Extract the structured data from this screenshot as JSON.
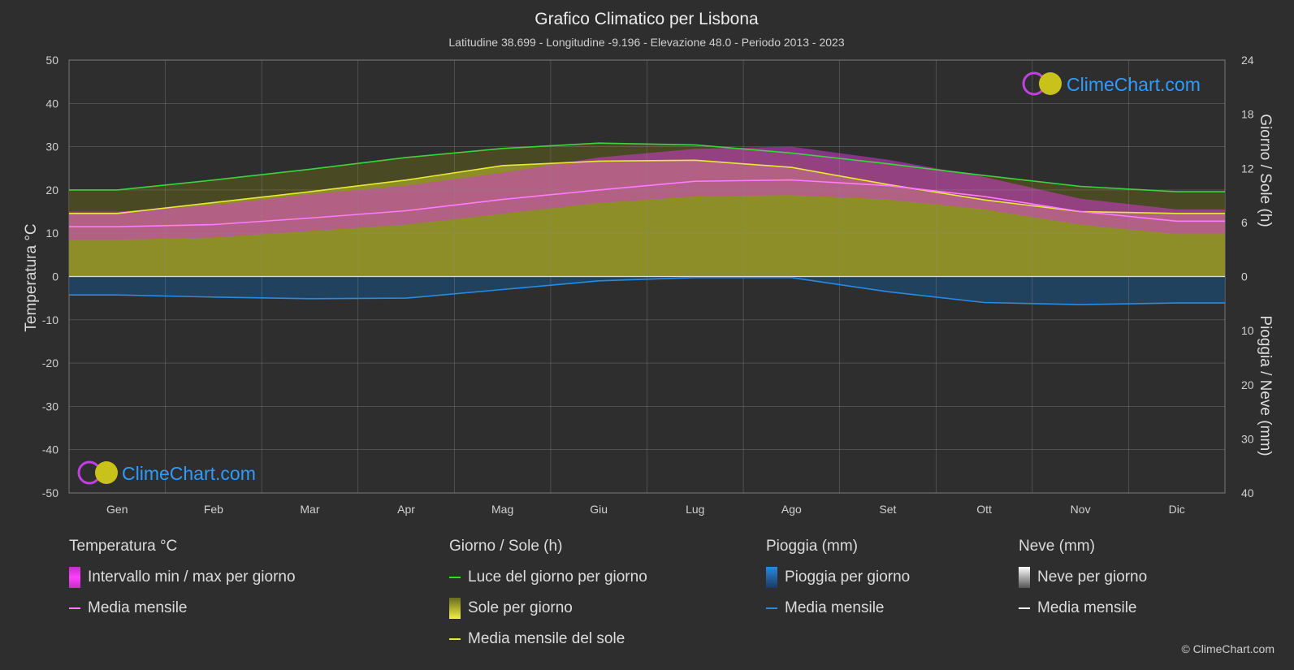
{
  "title": "Grafico Climatico per Lisbona",
  "subtitle": "Latitudine 38.699 - Longitudine -9.196 - Elevazione 48.0 - Periodo 2013 - 2023",
  "brand": "ClimeChart.com",
  "copyright": "© ClimeChart.com",
  "colors": {
    "background": "#2e2e2e",
    "daylight": "#3fd23f",
    "sun_mean": "#e8e83a",
    "sun_fill": "#9a9a2a",
    "temp_range": "#d23ad2",
    "temp_mean": "#ff7aff",
    "rain": "#1f6fb5",
    "rain_mean": "#2a8ae0",
    "snow_mean": "#ffffff",
    "brand": "#2e9bff"
  },
  "chart_data": {
    "type": "area",
    "categories": [
      "Gen",
      "Feb",
      "Mar",
      "Apr",
      "Mag",
      "Giu",
      "Lug",
      "Ago",
      "Set",
      "Ott",
      "Nov",
      "Dic"
    ],
    "y_left": {
      "label": "Temperatura °C",
      "range": [
        -50,
        50
      ],
      "ticks": [
        50,
        40,
        30,
        20,
        10,
        0,
        -10,
        -20,
        -30,
        -40,
        -50
      ]
    },
    "y_right_top": {
      "label": "Giorno / Sole (h)",
      "range": [
        0,
        24
      ],
      "ticks": [
        24,
        18,
        12,
        6,
        0
      ]
    },
    "y_right_bottom": {
      "label": "Pioggia / Neve (mm)",
      "range": [
        0,
        40
      ],
      "ticks": [
        10,
        20,
        30,
        40
      ]
    },
    "grid": true,
    "series": [
      {
        "name": "Luce del giorno per giorno",
        "axis": "hours",
        "values": [
          9.6,
          10.7,
          11.9,
          13.2,
          14.2,
          14.8,
          14.6,
          13.7,
          12.5,
          11.2,
          10.0,
          9.4
        ]
      },
      {
        "name": "Media mensile del sole",
        "axis": "hours",
        "values": [
          7.0,
          8.2,
          9.4,
          10.7,
          12.3,
          12.8,
          12.9,
          12.1,
          10.2,
          8.5,
          7.2,
          7.0
        ]
      },
      {
        "name": "Media mensile",
        "kind": "temp_mean",
        "axis": "temp",
        "values": [
          11.5,
          12.0,
          13.5,
          15.2,
          17.8,
          20.0,
          22.0,
          22.3,
          21.0,
          18.5,
          15.0,
          12.8
        ]
      },
      {
        "name": "Intervallo min / max per giorno",
        "kind": "temp_range",
        "axis": "temp",
        "min": [
          8.5,
          9.0,
          10.5,
          12.0,
          14.5,
          17.0,
          18.5,
          18.8,
          17.8,
          15.5,
          12.0,
          9.8
        ],
        "max": [
          15.0,
          16.5,
          19.0,
          21.0,
          24.0,
          27.5,
          29.5,
          30.0,
          27.0,
          23.0,
          18.0,
          15.5
        ]
      },
      {
        "name": "Media mensile",
        "kind": "rain_mean",
        "axis": "mm",
        "values": [
          3.4,
          3.8,
          4.1,
          4.0,
          2.4,
          0.8,
          0.2,
          0.2,
          2.8,
          4.8,
          5.2,
          4.9
        ]
      }
    ]
  },
  "legend": {
    "temperature": {
      "header": "Temperatura °C",
      "items": [
        "Intervallo min / max per giorno",
        "Media mensile"
      ]
    },
    "sun": {
      "header": "Giorno / Sole (h)",
      "items": [
        "Luce del giorno per giorno",
        "Sole per giorno",
        "Media mensile del sole"
      ]
    },
    "rain": {
      "header": "Pioggia (mm)",
      "items": [
        "Pioggia per giorno",
        "Media mensile"
      ]
    },
    "snow": {
      "header": "Neve (mm)",
      "items": [
        "Neve per giorno",
        "Media mensile"
      ]
    }
  }
}
